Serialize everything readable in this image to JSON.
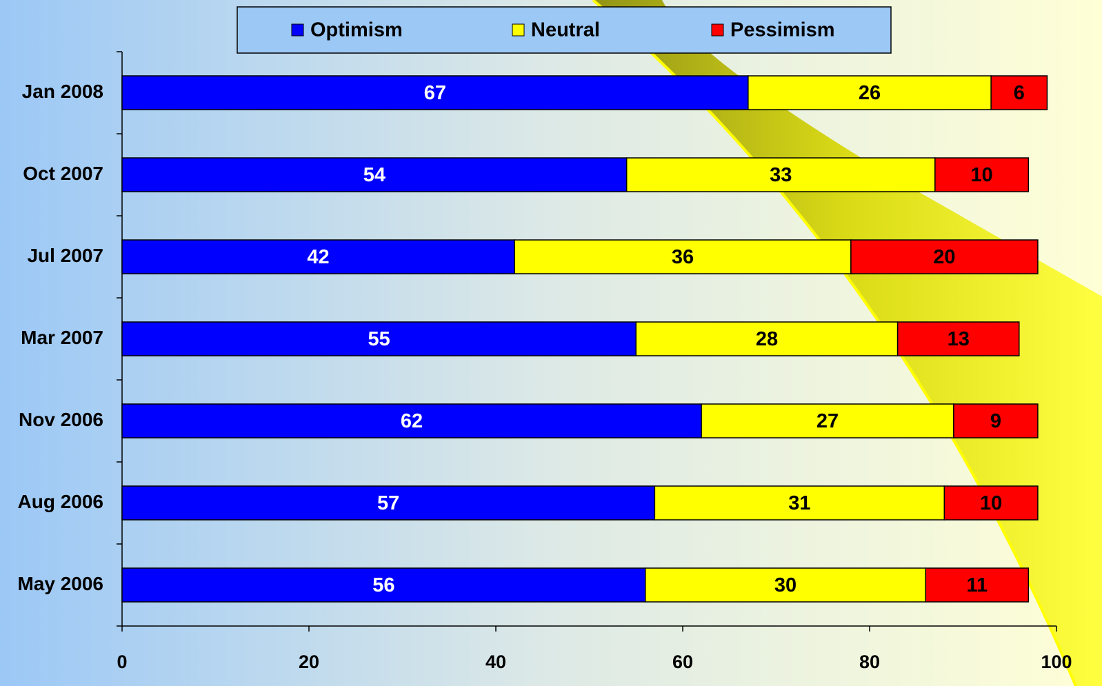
{
  "chart_data": {
    "type": "stacked-bar-horizontal",
    "categories": [
      "Jan 2008",
      "Oct 2007",
      "Jul 2007",
      "Mar 2007",
      "Nov 2006",
      "Aug 2006",
      "May 2006"
    ],
    "series": [
      {
        "name": "Optimism",
        "color": "#0000ff",
        "label_color": "#ffffff",
        "values": [
          67,
          54,
          42,
          55,
          62,
          57,
          56
        ]
      },
      {
        "name": "Neutral",
        "color": "#ffff00",
        "label_color": "#000000",
        "values": [
          26,
          33,
          36,
          28,
          27,
          31,
          30
        ]
      },
      {
        "name": "Pessimism",
        "color": "#ff0000",
        "label_color": "#000000",
        "values": [
          6,
          10,
          20,
          13,
          9,
          10,
          11
        ]
      }
    ],
    "xlim": [
      0,
      100
    ],
    "xticks": [
      0,
      20,
      40,
      60,
      80,
      100
    ],
    "legend": "top"
  }
}
